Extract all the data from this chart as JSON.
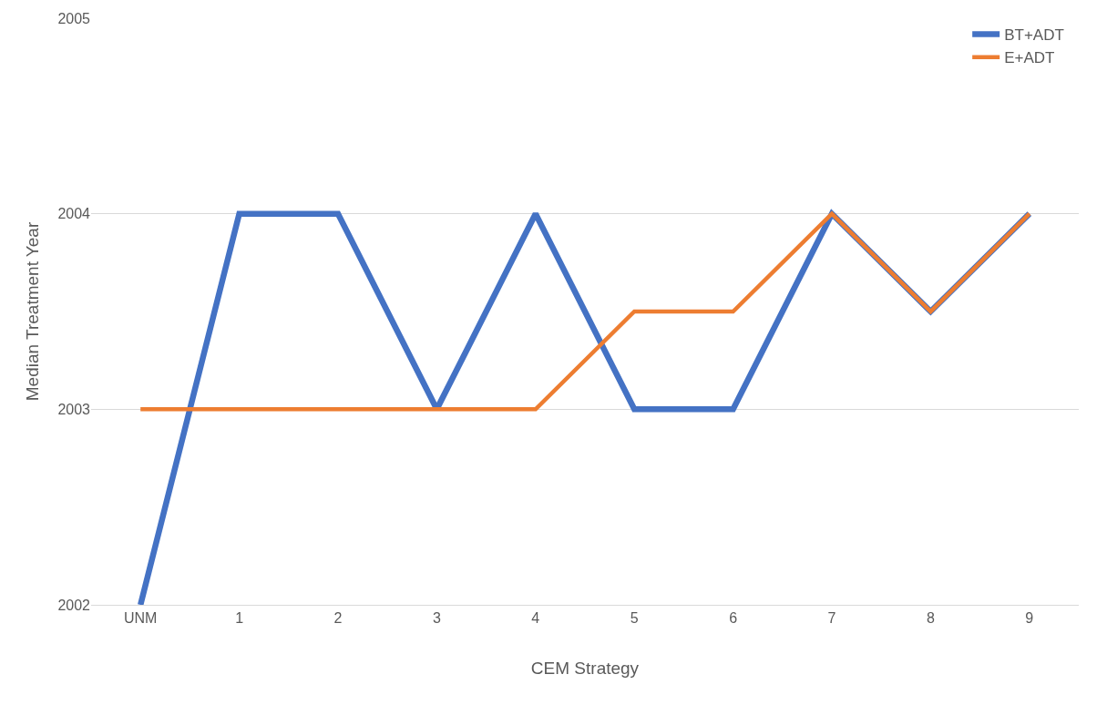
{
  "chart_data": {
    "type": "line",
    "xlabel": "CEM Strategy",
    "ylabel": "Median Treatment Year",
    "categories": [
      "UNM",
      "1",
      "2",
      "3",
      "4",
      "5",
      "6",
      "7",
      "8",
      "9"
    ],
    "series": [
      {
        "name": "BT+ADT",
        "color": "#4472c4",
        "values": [
          2002,
          2004,
          2004,
          2003,
          2004,
          2003,
          2003,
          2004,
          2003.5,
          2004
        ]
      },
      {
        "name": "E+ADT",
        "color": "#ed7d31",
        "values": [
          2003,
          2003,
          2003,
          2003,
          2003,
          2003.5,
          2003.5,
          2004,
          2003.5,
          2004
        ]
      }
    ],
    "ylim": [
      2002,
      2005
    ],
    "yticks": [
      2002,
      2003,
      2004,
      2005
    ],
    "grid": "y",
    "legend": "top right",
    "marker": "none",
    "line_style": "solid"
  }
}
